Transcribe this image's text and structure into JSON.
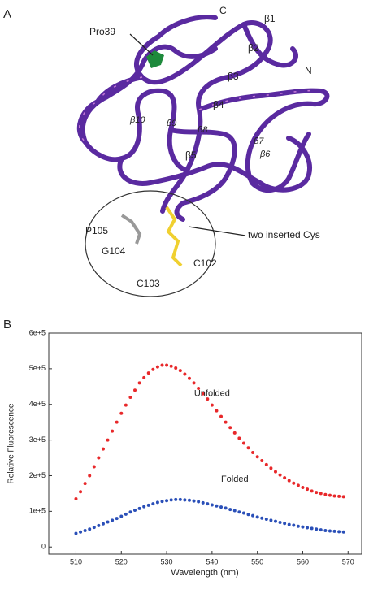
{
  "panel_a": {
    "label": "A",
    "annotations": [
      "C",
      "β1",
      "Pro39",
      "β2",
      "N",
      "β3",
      "β4",
      "β10",
      "β9",
      "β8",
      "β7",
      "β6",
      "β5",
      "P105",
      "two inserted Cys",
      "G104",
      "C102",
      "C103"
    ]
  },
  "chart_data": {
    "type": "scatter",
    "panel_label": "B",
    "x_label": "Wavelength (nm)",
    "y_label": "Relative Fluorescence",
    "x": [
      510,
      511,
      512,
      513,
      514,
      515,
      516,
      517,
      518,
      519,
      520,
      521,
      522,
      523,
      524,
      525,
      526,
      527,
      528,
      529,
      530,
      531,
      532,
      533,
      534,
      535,
      536,
      537,
      538,
      539,
      540,
      541,
      542,
      543,
      544,
      545,
      546,
      547,
      548,
      549,
      550,
      551,
      552,
      553,
      554,
      555,
      556,
      557,
      558,
      559,
      560,
      561,
      562,
      563,
      564,
      565,
      566,
      567,
      568,
      569
    ],
    "series": [
      {
        "name": "Unfolded",
        "color": "#e8282a",
        "values": [
          135000,
          155000,
          178000,
          200000,
          225000,
          250000,
          275000,
          300000,
          325000,
          350000,
          375000,
          398000,
          420000,
          440000,
          460000,
          475000,
          488000,
          498000,
          505000,
          510000,
          510000,
          507000,
          502000,
          495000,
          485000,
          473000,
          460000,
          445000,
          430000,
          415000,
          398000,
          382000,
          366000,
          350000,
          335000,
          320000,
          305000,
          291000,
          278000,
          265000,
          253000,
          242000,
          231000,
          221000,
          211000,
          202000,
          194000,
          186000,
          179000,
          173000,
          167000,
          162000,
          157000,
          153000,
          150000,
          147000,
          145000,
          143000,
          142000,
          141000
        ]
      },
      {
        "name": "Folded",
        "color": "#2a4fb8",
        "values": [
          38000,
          42000,
          46000,
          50000,
          55000,
          60000,
          65000,
          70000,
          75000,
          80000,
          86000,
          92000,
          98000,
          103000,
          108000,
          113000,
          117000,
          121000,
          125000,
          128000,
          130000,
          132000,
          133000,
          133000,
          132000,
          131000,
          129000,
          127000,
          124000,
          121000,
          118000,
          115000,
          112000,
          109000,
          105000,
          102000,
          98000,
          95000,
          91000,
          88000,
          84000,
          81000,
          78000,
          75000,
          72000,
          69000,
          66000,
          63000,
          61000,
          58000,
          56000,
          54000,
          52000,
          50000,
          48000,
          46000,
          45000,
          44000,
          43000,
          42000
        ]
      }
    ],
    "xlim": [
      504,
      573
    ],
    "xticks": [
      510,
      520,
      530,
      540,
      550,
      560,
      570
    ],
    "ylim": [
      -20000,
      600000
    ],
    "yticks": [
      0,
      {
        "value": 100000,
        "label": "1e+5"
      },
      {
        "value": 200000,
        "label": "2e+5"
      },
      {
        "value": 300000,
        "label": "3e+5"
      },
      {
        "value": 400000,
        "label": "4e+5"
      },
      {
        "value": 500000,
        "label": "5e+5"
      },
      {
        "value": 600000,
        "label": "6e+5"
      }
    ]
  }
}
